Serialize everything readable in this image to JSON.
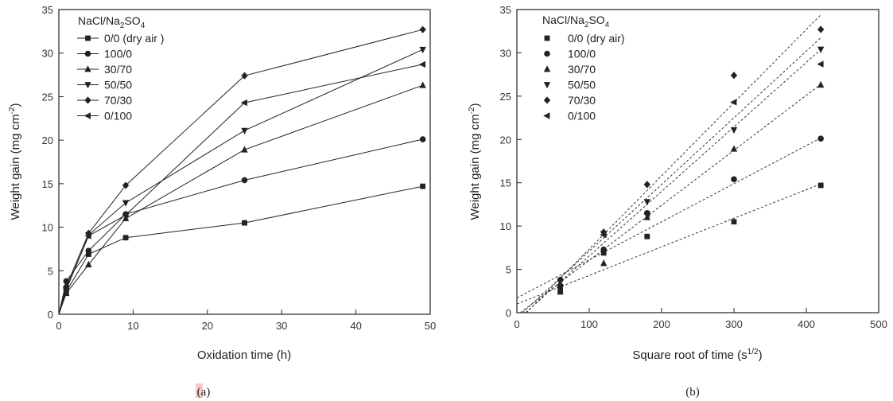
{
  "chart_data": [
    {
      "type": "line",
      "panel_label": "(a)",
      "xlabel": "Oxidation time (h)",
      "ylabel_main": "Weight gain (mg cm",
      "ylabel_sup": "-2",
      "ylabel_end": ")",
      "xlim": [
        0,
        50
      ],
      "ylim": [
        0,
        35
      ],
      "xticks": [
        0,
        10,
        20,
        30,
        40,
        50
      ],
      "yticks": [
        0,
        5,
        10,
        15,
        20,
        25,
        30,
        35
      ],
      "legend_title": {
        "main": "NaCl/Na",
        "sub1": "2",
        "mid": "SO",
        "sub2": "4"
      },
      "legend_position": "top-left",
      "grid": false,
      "x": [
        0,
        1,
        4,
        9,
        25,
        49
      ],
      "series": [
        {
          "name": "0/0 (dry air )",
          "marker": "square",
          "values": [
            0,
            2.6,
            6.9,
            8.8,
            10.5,
            14.7
          ]
        },
        {
          "name": "100/0",
          "marker": "circle",
          "values": [
            0,
            3.8,
            7.3,
            11.5,
            15.4,
            20.1
          ]
        },
        {
          "name": "30/70",
          "marker": "triangle-up",
          "values": [
            0,
            2.4,
            5.7,
            11.0,
            18.9,
            26.3
          ]
        },
        {
          "name": "50/50",
          "marker": "triangle-down",
          "values": [
            0,
            2.8,
            9.1,
            12.8,
            21.1,
            30.4
          ]
        },
        {
          "name": "70/30",
          "marker": "diamond",
          "values": [
            0,
            3.2,
            9.3,
            14.8,
            27.4,
            32.7
          ]
        },
        {
          "name": "0/100",
          "marker": "triangle-left",
          "values": [
            0,
            2.9,
            9.0,
            11.4,
            24.3,
            28.7
          ]
        }
      ]
    },
    {
      "type": "scatter",
      "panel_label": "(b)",
      "xlabel_main": "Square root of time (s",
      "xlabel_sup": "1/2",
      "xlabel_end": ")",
      "ylabel_main": "Weight gain (mg cm",
      "ylabel_sup": "-2",
      "ylabel_end": ")",
      "xlim": [
        0,
        500
      ],
      "ylim": [
        0,
        35
      ],
      "xticks": [
        0,
        100,
        200,
        300,
        400,
        500
      ],
      "yticks": [
        0,
        5,
        10,
        15,
        20,
        25,
        30,
        35
      ],
      "legend_title": {
        "main": "NaCl/Na",
        "sub1": "2",
        "mid": "SO",
        "sub2": "4"
      },
      "legend_position": "top-left",
      "grid": false,
      "fit_lines": "dashed linear fit per series",
      "x": [
        60,
        120,
        180,
        300,
        420
      ],
      "series": [
        {
          "name": "0/0 (dry air)",
          "marker": "square",
          "values": [
            2.6,
            6.9,
            8.8,
            10.5,
            14.7
          ],
          "fit": [
            1.0,
            0.033
          ]
        },
        {
          "name": "100/0",
          "marker": "circle",
          "values": [
            3.8,
            7.3,
            11.5,
            15.4,
            20.1
          ],
          "fit": [
            1.7,
            0.044
          ]
        },
        {
          "name": "30/70",
          "marker": "triangle-up",
          "values": [
            2.4,
            5.7,
            11.0,
            18.9,
            26.3
          ],
          "fit": [
            -0.3,
            0.0635
          ]
        },
        {
          "name": "50/50",
          "marker": "triangle-down",
          "values": [
            2.8,
            9.1,
            12.8,
            21.1,
            30.4
          ],
          "fit": [
            -0.9,
            0.0745
          ]
        },
        {
          "name": "70/30",
          "marker": "diamond",
          "values": [
            3.2,
            9.3,
            14.8,
            27.4,
            32.7
          ],
          "fit": [
            -1.1,
            0.0845
          ]
        },
        {
          "name": "0/100",
          "marker": "triangle-left",
          "values": [
            2.9,
            9.0,
            11.4,
            24.3,
            28.7
          ],
          "fit": [
            -0.6,
            0.077
          ]
        }
      ]
    }
  ]
}
